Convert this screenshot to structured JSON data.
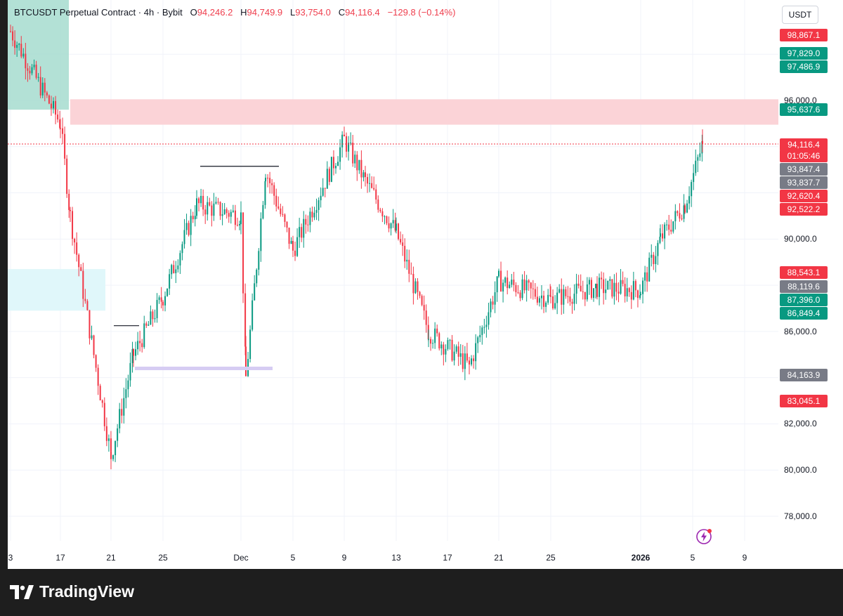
{
  "header": {
    "symbol": "BTCUSDT Perpetual Contract",
    "sep1": "·",
    "interval": "4h",
    "sep2": "·",
    "exchange": "Bybit",
    "open_label": "O",
    "open": "94,246.2",
    "high_label": "H",
    "high": "94,749.9",
    "low_label": "L",
    "low": "93,754.0",
    "close_label": "C",
    "close": "94,116.4",
    "change": "−129.8 (−0.14%)"
  },
  "currency_button": "USDT",
  "price_scale_labels": [
    "96,000.0",
    "90,000.0",
    "86,000.0",
    "82,000.0",
    "80,000.0",
    "78,000.0"
  ],
  "price_tags": [
    {
      "text": "98,867.1",
      "color": "#f23645"
    },
    {
      "text": "97,829.0",
      "color": "#089981"
    },
    {
      "text": "97,486.9",
      "color": "#089981"
    },
    {
      "text": "95,637.6",
      "color": "#089981"
    },
    {
      "text": "94,116.4",
      "color": "#f23645"
    },
    {
      "text": "01:05:46",
      "color": "#f23645"
    },
    {
      "text": "93,847.4",
      "color": "#787b86"
    },
    {
      "text": "93,837.7",
      "color": "#787b86"
    },
    {
      "text": "92,620.4",
      "color": "#f23645"
    },
    {
      "text": "92,522.2",
      "color": "#f23645"
    },
    {
      "text": "88,543.1",
      "color": "#f23645"
    },
    {
      "text": "88,119.6",
      "color": "#787b86"
    },
    {
      "text": "87,396.0",
      "color": "#089981"
    },
    {
      "text": "86,849.4",
      "color": "#089981"
    },
    {
      "text": "84,163.9",
      "color": "#787b86"
    },
    {
      "text": "83,045.1",
      "color": "#f23645"
    }
  ],
  "time_scale_labels": [
    {
      "text": "3",
      "bold": false
    },
    {
      "text": "17",
      "bold": false
    },
    {
      "text": "21",
      "bold": false
    },
    {
      "text": "25",
      "bold": false
    },
    {
      "text": "Dec",
      "bold": false
    },
    {
      "text": "5",
      "bold": false
    },
    {
      "text": "9",
      "bold": false
    },
    {
      "text": "13",
      "bold": false
    },
    {
      "text": "17",
      "bold": false
    },
    {
      "text": "21",
      "bold": false
    },
    {
      "text": "25",
      "bold": false
    },
    {
      "text": "2026",
      "bold": true
    },
    {
      "text": "5",
      "bold": false
    },
    {
      "text": "9",
      "bold": false
    }
  ],
  "branding": "TradingView",
  "colors": {
    "up": "#089981",
    "down": "#f23645",
    "supply_zone": "#fbd3d7",
    "demand_zone_top": "#a6dccf",
    "demand_zone_mid": "#e0f7fa",
    "liquidity_line": "#d6ccf3",
    "last_price_line": "#f23645",
    "grid": "#f0f3fa"
  },
  "chart_data": {
    "type": "candlestick",
    "symbol": "BTCUSDT Perpetual Contract",
    "interval": "4h",
    "exchange": "Bybit",
    "last": {
      "open": 94246.2,
      "high": 94749.9,
      "low": 93754.0,
      "close": 94116.4,
      "change": -129.8,
      "change_pct": -0.14
    },
    "y_range": [
      77000,
      100500
    ],
    "y_ticks": [
      96000,
      90000,
      86000,
      82000,
      80000,
      78000
    ],
    "x_tick_labels": [
      "3",
      "17",
      "21",
      "25",
      "Dec",
      "5",
      "9",
      "13",
      "17",
      "21",
      "25",
      "2026",
      "5",
      "9"
    ],
    "approx_close_path": [
      {
        "label": "start (Nov)",
        "close": 99000
      },
      {
        "label": "17",
        "close": 95000
      },
      {
        "label": "19",
        "close": 91000
      },
      {
        "label": "21 (low)",
        "close": 80600
      },
      {
        "label": "23",
        "close": 85000
      },
      {
        "label": "26",
        "close": 87500
      },
      {
        "label": "28",
        "close": 91500
      },
      {
        "label": "Dec 1",
        "close": 91000
      },
      {
        "label": "Dec 1 (low)",
        "close": 84000
      },
      {
        "label": "Dec 3",
        "close": 93000
      },
      {
        "label": "Dec 5",
        "close": 89500
      },
      {
        "label": "Dec 9",
        "close": 94300
      },
      {
        "label": "Dec 11",
        "close": 92500
      },
      {
        "label": "Dec 13",
        "close": 90300
      },
      {
        "label": "Dec 16",
        "close": 86000
      },
      {
        "label": "Dec 18 (low)",
        "close": 84500
      },
      {
        "label": "Dec 21",
        "close": 88200
      },
      {
        "label": "Dec 25",
        "close": 87400
      },
      {
        "label": "Dec 29",
        "close": 87900
      },
      {
        "label": "2026",
        "close": 87800
      },
      {
        "label": "Jan 2",
        "close": 90000
      },
      {
        "label": "Jan 4",
        "close": 91500
      },
      {
        "label": "Jan 5",
        "close": 94116.4
      }
    ],
    "zones": [
      {
        "type": "supply",
        "from": 94950,
        "to": 96050
      },
      {
        "type": "demand",
        "from": 95600,
        "to": 100500
      },
      {
        "type": "demand",
        "from": 86900,
        "to": 88700
      }
    ],
    "levels": [
      {
        "label": "swing high",
        "price": 93150
      },
      {
        "label": "swing high",
        "price": 93150
      },
      {
        "label": "swing high",
        "price": 86250
      },
      {
        "label": "liquidity",
        "price": 84400
      }
    ]
  }
}
